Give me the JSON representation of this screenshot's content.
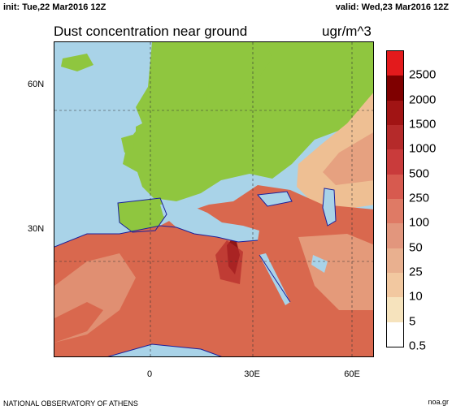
{
  "header": {
    "init": "init: Tue,22 Mar2016 12Z",
    "valid": "valid: Wed,23 Mar2016 12Z"
  },
  "map": {
    "title": "Dust concentration near ground",
    "units": "ugr/m^3",
    "lat_labels": [
      "60N",
      "30N"
    ],
    "lon_labels": [
      "0",
      "30E",
      "60E"
    ],
    "colors": {
      "ocean": "#a9d3e8",
      "land_clean": "#8fc63f",
      "dust_light": "#eebf93",
      "dust_medium": "#d9684e",
      "dust_heavy": "#8d1616",
      "coast": "#1a1f9b"
    }
  },
  "colorbar": {
    "labels": [
      "2500",
      "2000",
      "1500",
      "1000",
      "500",
      "250",
      "100",
      "50",
      "25",
      "10",
      "5",
      "0.5"
    ],
    "colors": [
      "#e31a1c",
      "#7f0000",
      "#a11414",
      "#b52a2a",
      "#c93b3b",
      "#d75a4f",
      "#df7a65",
      "#e2967d",
      "#e9b08f",
      "#f2c8a0",
      "#f6e3bd",
      "#ffffff"
    ]
  },
  "footer": {
    "left": "NATIONAL OBSERVATORY OF ATHENS",
    "right": "noa.gr"
  }
}
